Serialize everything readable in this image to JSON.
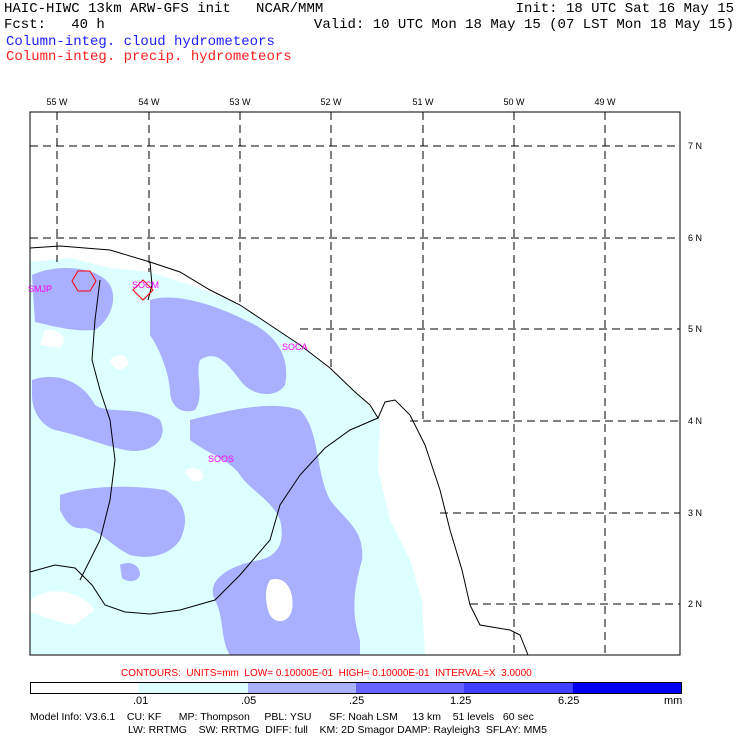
{
  "header": {
    "title_left": "HAIC-HIWC 13km ARW-GFS init   NCAR/MMM",
    "fcst": "Fcst:   40 h",
    "init": "Init: 18 UTC Sat 16 May 15",
    "valid": "Valid: 10 UTC Mon 18 May 15 (07 LST Mon 18 May 15)",
    "field1": "Column-integ. cloud hydrometeors",
    "field2": "Column-integ. precip. hydrometeors"
  },
  "map": {
    "lon_labels": [
      "55 W",
      "54 W",
      "53 W",
      "52 W",
      "51 W",
      "50 W",
      "49 W"
    ],
    "lat_labels": [
      "7 N",
      "6 N",
      "5 N",
      "4 N",
      "3 N",
      "2 N"
    ],
    "stations": [
      {
        "id": "SMJP"
      },
      {
        "id": "SOCM"
      },
      {
        "id": "SOCA"
      },
      {
        "id": "SOOS"
      }
    ],
    "colors": {
      "level1": "#ddffff",
      "level2": "#a8b0ff",
      "level3": "#6666ff",
      "level4": "#4040ff",
      "level5": "#0000ee",
      "station": "#ff00ff",
      "contours_text": "#ff0000"
    }
  },
  "footer": {
    "contours": "CONTOURS:  UNITS=mm  LOW= 0.10000E-01  HIGH= 0.10000E-01  INTERVAL=X  3.0000",
    "colorbar_ticks": [
      ".01",
      ".05",
      ".25",
      "1.25",
      "6.25"
    ],
    "colorbar_unit": "mm",
    "model_line1": "Model Info: V3.6.1    CU: KF      MP: Thompson     PBL: YSU      SF: Noah LSM     13 km    51 levels   60 sec",
    "model_line2": "LW: RRTMG    SW: RRTMG  DIFF: full    KM: 2D Smagor DAMP: Rayleigh3  SFLAY: MM5"
  }
}
